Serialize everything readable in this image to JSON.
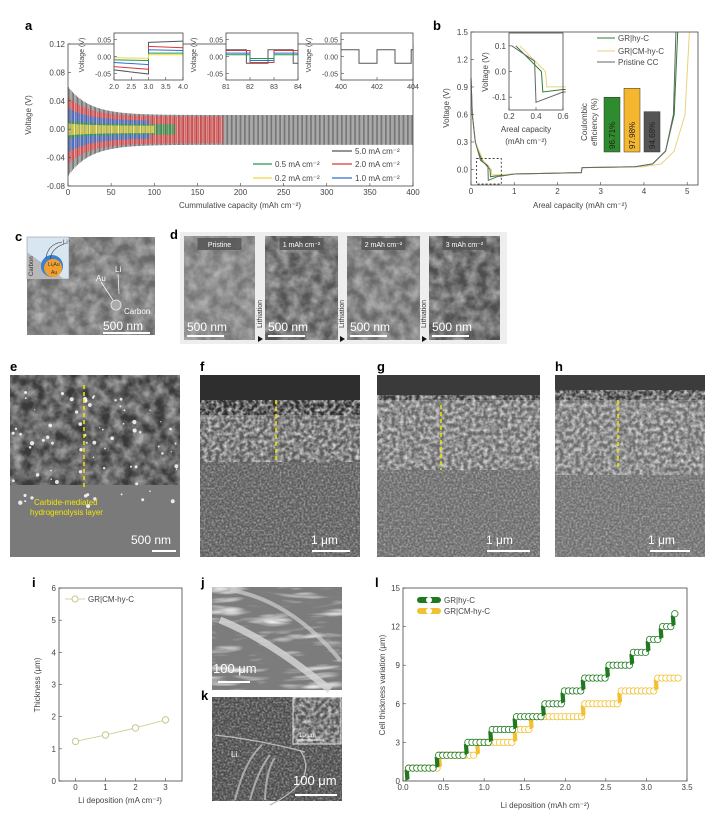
{
  "panel_labels": {
    "a": "a",
    "b": "b",
    "c": "c",
    "d": "d",
    "e": "e",
    "f": "f",
    "g": "g",
    "h": "h",
    "i": "i",
    "j": "j",
    "k": "k",
    "l": "l"
  },
  "chart_data": {
    "a": {
      "type": "line",
      "xlabel": "Cummulative capacity (mAh cm⁻²)",
      "ylabel": "Voltage (V)",
      "xlim": [
        0,
        400
      ],
      "ylim": [
        -0.08,
        0.12
      ],
      "xticks": [
        0,
        50,
        100,
        150,
        200,
        250,
        300,
        350,
        400
      ],
      "yticks": [
        "-0.08",
        "-0.04",
        "0.00",
        "0.04",
        "0.08",
        "0.12"
      ],
      "legend_position": "bottom-right",
      "series": [
        {
          "name": "5.0 mA cm⁻²",
          "color": "#555555",
          "end_capacity": 400,
          "amplitude": 0.02,
          "initial_amplitude": 0.06
        },
        {
          "name": "2.0 mA cm⁻²",
          "color": "#d83a3a",
          "end_capacity": 180,
          "amplitude": 0.018,
          "initial_amplitude": 0.045
        },
        {
          "name": "1.0 mA cm⁻²",
          "color": "#2f6fd0",
          "end_capacity": 95,
          "amplitude": 0.012,
          "initial_amplitude": 0.03
        },
        {
          "name": "0.5 mA cm⁻²",
          "color": "#1f9a4a",
          "end_capacity": 125,
          "amplitude": 0.007,
          "initial_amplitude": 0.012
        },
        {
          "name": "0.2 mA cm⁻²",
          "color": "#f2d640",
          "end_capacity": 100,
          "amplitude": 0.005,
          "initial_amplitude": 0.008
        }
      ],
      "insets": [
        {
          "ylabel": "Voltage (V)",
          "xlim": [
            2,
            4
          ],
          "ylim": [
            -0.07,
            0.07
          ],
          "xticks": [
            "2.0",
            "2.5",
            "3.0",
            "3.5",
            "4.0"
          ],
          "xtick_values": [
            2,
            2.5,
            3,
            3.5,
            4
          ],
          "yticks": [
            "0.05",
            "0.00",
            "-0.05"
          ],
          "ytick_values": [
            0.05,
            0,
            -0.05
          ],
          "series": [
            {
              "color": "#555555",
              "points": [
                [
                  2,
                  -0.04
                ],
                [
                  3,
                  -0.052
                ],
                [
                  3,
                  0.042
                ],
                [
                  4,
                  0.046
                ]
              ]
            },
            {
              "color": "#d83a3a",
              "points": [
                [
                  2,
                  -0.03
                ],
                [
                  3,
                  -0.038
                ],
                [
                  3,
                  0.03
                ],
                [
                  4,
                  0.026
                ]
              ]
            },
            {
              "color": "#2f6fd0",
              "points": [
                [
                  2,
                  -0.018
                ],
                [
                  3,
                  -0.024
                ],
                [
                  3,
                  0.02
                ],
                [
                  4,
                  0.018
                ]
              ]
            },
            {
              "color": "#1f9a4a",
              "points": [
                [
                  2,
                  -0.01
                ],
                [
                  3,
                  -0.012
                ],
                [
                  3,
                  0.01
                ],
                [
                  4,
                  0.01
                ]
              ]
            },
            {
              "color": "#f2d640",
              "points": [
                [
                  2,
                  -0.004
                ],
                [
                  3,
                  -0.005
                ],
                [
                  3,
                  0.005
                ],
                [
                  4,
                  0.005
                ]
              ]
            }
          ]
        },
        {
          "ylabel": "Voltage (V)",
          "xlim": [
            81,
            84
          ],
          "ylim": [
            -0.07,
            0.07
          ],
          "xticks": [
            "81",
            "82",
            "83",
            "84"
          ],
          "xtick_values": [
            81,
            82,
            83,
            84
          ],
          "yticks": [
            "0.05",
            "0.00",
            "-0.05"
          ],
          "ytick_values": [
            0.05,
            0,
            -0.05
          ],
          "series": [
            {
              "color": "#555555",
              "points": [
                [
                  81,
                  0.02
                ],
                [
                  81.85,
                  0.02
                ],
                [
                  81.85,
                  -0.02
                ],
                [
                  82.75,
                  -0.02
                ],
                [
                  82.75,
                  0.02
                ],
                [
                  83.8,
                  0.02
                ],
                [
                  83.8,
                  -0.02
                ],
                [
                  84,
                  -0.02
                ]
              ]
            },
            {
              "color": "#d83a3a",
              "points": [
                [
                  81,
                  0.018
                ],
                [
                  82,
                  0.018
                ],
                [
                  82,
                  -0.018
                ],
                [
                  83,
                  -0.018
                ],
                [
                  83,
                  0.018
                ],
                [
                  84,
                  0.018
                ]
              ]
            },
            {
              "color": "#2f6fd0",
              "points": [
                [
                  81,
                  0.01
                ],
                [
                  82,
                  0.01
                ],
                [
                  82,
                  -0.012
                ],
                [
                  83,
                  -0.012
                ],
                [
                  83,
                  0.01
                ],
                [
                  84,
                  0.01
                ]
              ]
            },
            {
              "color": "#1f9a4a",
              "points": [
                [
                  81,
                  0.005
                ],
                [
                  82,
                  0.005
                ],
                [
                  82,
                  -0.006
                ],
                [
                  83,
                  -0.006
                ],
                [
                  83,
                  0.005
                ],
                [
                  84,
                  0.005
                ]
              ]
            }
          ]
        },
        {
          "ylabel": "Voltage (V)",
          "xlim": [
            400,
            404
          ],
          "ylim": [
            -0.07,
            0.07
          ],
          "xticks": [
            "400",
            "402",
            "404"
          ],
          "xtick_values": [
            400,
            402,
            404
          ],
          "yticks": [
            "0.05",
            "0.00",
            "-0.05"
          ],
          "ytick_values": [
            0.05,
            0,
            -0.05
          ],
          "series": [
            {
              "color": "#555555",
              "points": [
                [
                  400,
                  0.02
                ],
                [
                  401,
                  0.02
                ],
                [
                  401,
                  -0.02
                ],
                [
                  402,
                  -0.02
                ],
                [
                  402,
                  0.02
                ],
                [
                  403,
                  0.02
                ],
                [
                  403,
                  -0.02
                ],
                [
                  403.9,
                  -0.02
                ],
                [
                  403.9,
                  0.02
                ],
                [
                  404,
                  0.02
                ]
              ]
            }
          ]
        }
      ]
    },
    "b": {
      "type": "line",
      "xlabel": "Areal capacity (mAh cm⁻²)",
      "ylabel": "Voltage (V)",
      "xlim": [
        0,
        5.25
      ],
      "ylim": [
        -0.17,
        1.5
      ],
      "xticks": [
        0,
        1,
        2,
        3,
        4,
        5
      ],
      "yticks": [
        "0.0",
        "0.3",
        "0.6",
        "0.9",
        "1.2",
        "1.5"
      ],
      "legend_position": "top-right",
      "series": [
        {
          "name": "GR|hy-C",
          "color": "#2e7d32",
          "points": [
            [
              0,
              1.0
            ],
            [
              0.03,
              0.6
            ],
            [
              0.1,
              0.3
            ],
            [
              0.25,
              0.1
            ],
            [
              0.44,
              0.0
            ],
            [
              0.45,
              -0.08
            ],
            [
              0.6,
              -0.07
            ],
            [
              1,
              -0.05
            ],
            [
              2.55,
              -0.035
            ],
            [
              2.57,
              0.02
            ],
            [
              3.8,
              0.03
            ],
            [
              4.2,
              0.06
            ],
            [
              4.5,
              0.2
            ],
            [
              4.7,
              0.6
            ],
            [
              4.78,
              1.5
            ]
          ]
        },
        {
          "name": "GR|CM-hy-C",
          "color": "#e8d27a",
          "points": [
            [
              0,
              1.0
            ],
            [
              0.03,
              0.6
            ],
            [
              0.1,
              0.3
            ],
            [
              0.28,
              0.1
            ],
            [
              0.47,
              0.0
            ],
            [
              0.48,
              -0.06
            ],
            [
              0.6,
              -0.06
            ],
            [
              1,
              -0.05
            ],
            [
              2.55,
              -0.035
            ],
            [
              2.57,
              0.02
            ],
            [
              4.0,
              0.03
            ],
            [
              4.4,
              0.06
            ],
            [
              4.7,
              0.2
            ],
            [
              4.95,
              0.6
            ],
            [
              5.05,
              1.5
            ]
          ]
        },
        {
          "name": "Pristine CC",
          "color": "#666666",
          "points": [
            [
              0,
              1.0
            ],
            [
              0.03,
              0.6
            ],
            [
              0.1,
              0.3
            ],
            [
              0.22,
              0.1
            ],
            [
              0.39,
              0.04
            ],
            [
              0.4,
              -0.12
            ],
            [
              0.6,
              -0.08
            ],
            [
              1,
              -0.05
            ],
            [
              2.55,
              -0.035
            ],
            [
              2.57,
              0.02
            ],
            [
              3.8,
              0.03
            ],
            [
              4.2,
              0.06
            ],
            [
              4.5,
              0.2
            ],
            [
              4.68,
              0.6
            ],
            [
              4.74,
              1.5
            ]
          ]
        }
      ],
      "inset": {
        "xlabel": "Areal capacity",
        "xlabel2": "(mAh cm⁻²)",
        "ylabel": "Voltage (V)",
        "xlim": [
          0.2,
          0.6
        ],
        "ylim": [
          -0.15,
          0.15
        ],
        "xticks": [
          "0.2",
          "0.4",
          "0.6"
        ],
        "xtick_values": [
          0.2,
          0.4,
          0.6
        ],
        "yticks": [
          "0.1",
          "0.0",
          "-0.1"
        ],
        "ytick_values": [
          0.1,
          0,
          -0.1
        ]
      },
      "ce_bars": {
        "label": "Coulombic efficiency (%)",
        "label_line1": "Coulombic",
        "label_line2": "efficiency (%)",
        "ylim": [
          89,
          100
        ],
        "bars": [
          {
            "series": "GR|hy-C",
            "value": 96.71,
            "label": "96.71%",
            "color": "#2e8b2e"
          },
          {
            "series": "GR|CM-hy-C",
            "value": 97.98,
            "label": "97.98%",
            "color": "#f5b730"
          },
          {
            "series": "Pristine CC",
            "value": 94.68,
            "label": "94.68%",
            "color": "#555555"
          }
        ]
      }
    },
    "i": {
      "type": "line",
      "xlabel": "Li deposition (mA cm⁻²)",
      "ylabel": "Thickness (μm)",
      "xlim": [
        -0.55,
        3.55
      ],
      "ylim": [
        0,
        6
      ],
      "xticks": [
        0,
        1,
        2,
        3
      ],
      "yticks": [
        0,
        1,
        2,
        3,
        4,
        5,
        6
      ],
      "legend_position": "top-left",
      "series": [
        {
          "name": "GR|CM-hy-C",
          "color": "#c9c78a",
          "x": [
            0,
            1,
            2,
            3
          ],
          "y": [
            1.23,
            1.43,
            1.65,
            1.9
          ]
        }
      ]
    },
    "l": {
      "type": "scatter",
      "xlabel": "Li deposition (mAh cm⁻²)",
      "ylabel": "Cell thickness variation (μm)",
      "xlim": [
        0,
        3.5
      ],
      "ylim": [
        0,
        15
      ],
      "xticks": [
        "0.0",
        "0.5",
        "1.0",
        "1.5",
        "2.0",
        "2.5",
        "3.0",
        "3.5"
      ],
      "xtick_values": [
        0,
        0.5,
        1,
        1.5,
        2,
        2.5,
        3,
        3.5
      ],
      "yticks": [
        0,
        3,
        6,
        9,
        12,
        15
      ],
      "legend_position": "top-left",
      "series": [
        {
          "name": "GR|hy-C",
          "color": "#1f7a1f",
          "step_x": [
            0.05,
            0.42,
            0.78,
            1.08,
            1.38,
            1.73,
            1.97,
            2.22,
            2.52,
            2.82,
            3.02,
            3.18,
            3.33
          ],
          "step_levels": [
            0,
            1,
            2,
            3,
            4,
            5,
            6,
            7,
            8,
            9,
            10,
            11,
            12,
            13
          ],
          "x_end": 3.4
        },
        {
          "name": "GR|CM-hy-C",
          "color": "#f2c030",
          "step_x": [
            0.05,
            0.45,
            0.92,
            1.38,
            1.58,
            2.22,
            2.67,
            3.12
          ],
          "step_levels": [
            0,
            1,
            2,
            3,
            4,
            5,
            6,
            7,
            8
          ],
          "x_end": 3.4
        }
      ]
    }
  },
  "images": {
    "c": {
      "schematic_li_ion": "Li⁺",
      "schematic_lixau": "LiₓAu",
      "schematic_au": "Au",
      "schematic_carbon": "Carbon",
      "label_au": "Au",
      "label_li": "Li",
      "label_carbon": "Carbon",
      "scale_bar": "500 nm"
    },
    "d": {
      "panels": [
        {
          "title": "Pristine",
          "scale_bar": "500 nm"
        },
        {
          "title": "1 mAh cm⁻²",
          "scale_bar": "500 nm"
        },
        {
          "title": "2 mAh cm⁻²",
          "scale_bar": "500 nm"
        },
        {
          "title": "3 mAh cm⁻²",
          "scale_bar": "500 nm"
        }
      ],
      "arrow_label": "Lithiation"
    },
    "e": {
      "annotation_line1": "Carbide-mediated",
      "annotation_line2": "hydrogenolysis layer",
      "scale_bar": "500 nm"
    },
    "f": {
      "scale_bar": "1 μm"
    },
    "g": {
      "scale_bar": "1 μm"
    },
    "h": {
      "scale_bar": "1 μm"
    },
    "j": {
      "scale_bar": "100 μm"
    },
    "k": {
      "label_li": "Li",
      "scale_bar": "100 μm",
      "inset_scale_bar": "10 μm"
    }
  }
}
